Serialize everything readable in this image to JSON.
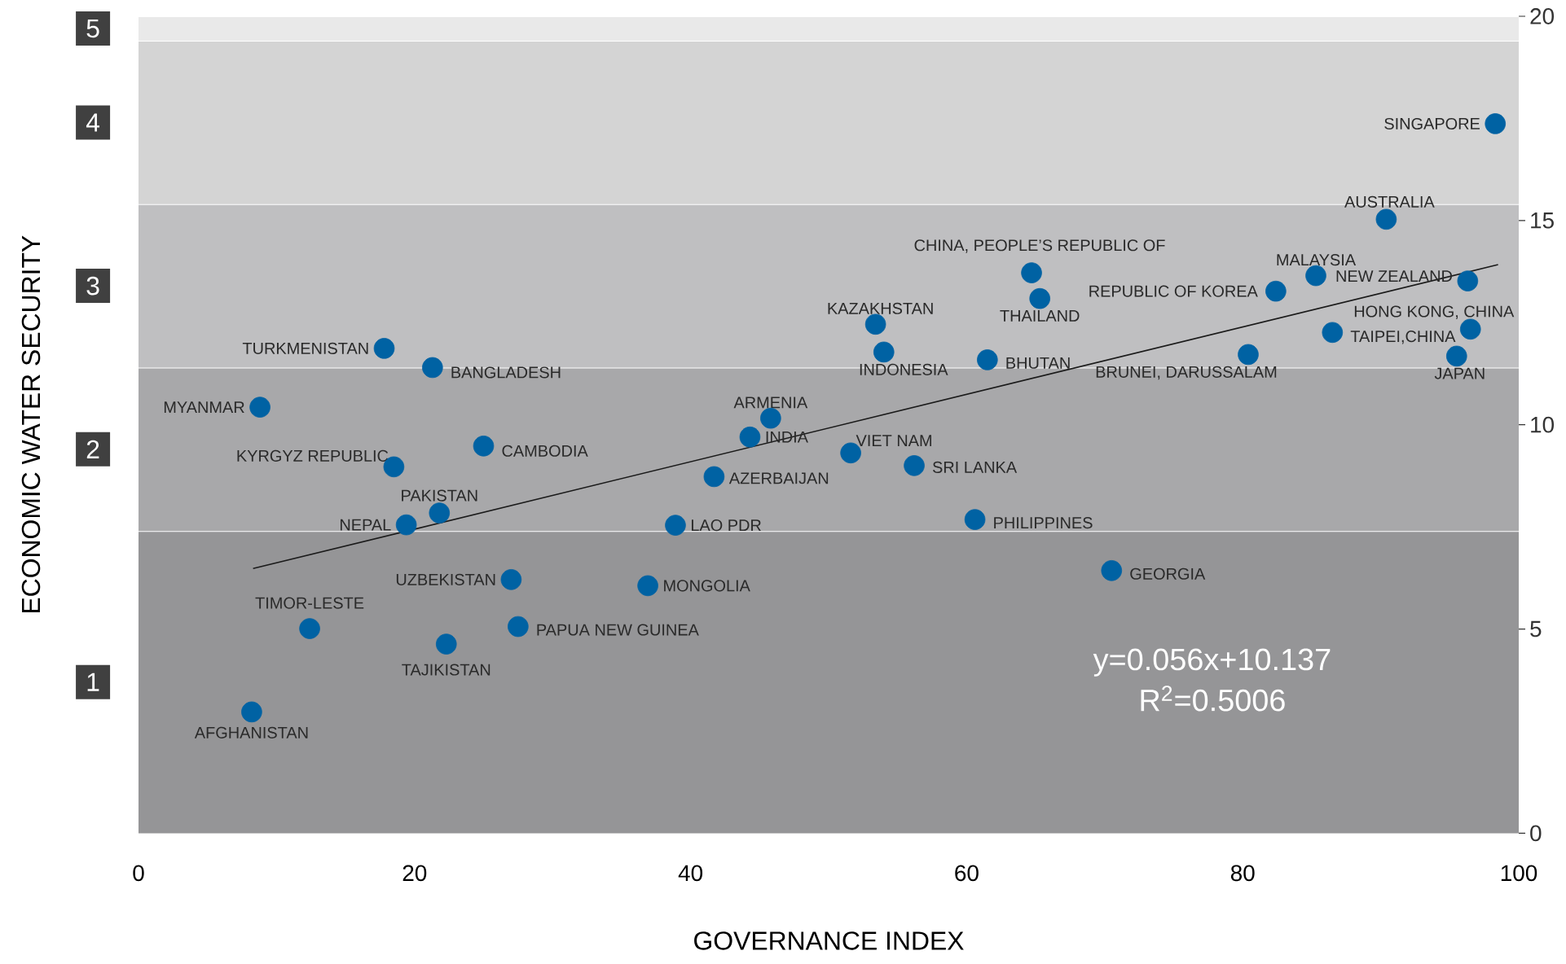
{
  "chart_data": {
    "type": "scatter",
    "xlabel": "GOVERNANCE INDEX",
    "ylabel": "ECONOMIC WATER SECURITY",
    "xlim": [
      0,
      100
    ],
    "ylim": [
      0,
      20
    ],
    "xticks": [
      0,
      20,
      40,
      60,
      80,
      100
    ],
    "yticks": [
      0,
      5,
      10,
      15,
      20
    ],
    "bands": [
      {
        "axis": "y",
        "from": 0,
        "to": 7.4,
        "label": "1",
        "color": "#959597"
      },
      {
        "axis": "y",
        "from": 7.4,
        "to": 11.4,
        "label": "2",
        "color": "#a8a8aa"
      },
      {
        "axis": "y",
        "from": 11.4,
        "to": 15.4,
        "label": "3",
        "color": "#bfbfc1"
      },
      {
        "axis": "y",
        "from": 15.4,
        "to": 19.4,
        "label": "4",
        "color": "#d4d4d4"
      },
      {
        "axis": "y",
        "from": 19.4,
        "to": 20,
        "label": "5",
        "color": "#e9e9e9"
      }
    ],
    "series": [
      {
        "type": "line",
        "color": "#1a1a1a",
        "x": [
          8.3,
          98.5
        ],
        "values": [
          6.48,
          13.92
        ]
      },
      {
        "color": "#0062a3",
        "marker": "circle",
        "x": [
          17.8,
          21.3,
          8.8,
          25.0,
          18.5,
          21.8,
          19.4,
          45.8,
          44.3,
          41.7,
          38.9,
          27.0,
          36.9,
          12.4,
          27.5,
          22.3,
          8.2,
          51.6,
          56.2,
          60.6,
          70.5,
          53.4,
          54.0,
          61.5,
          64.7,
          65.3,
          80.4,
          82.4,
          85.3,
          96.3,
          96.5,
          86.5,
          95.5,
          90.4,
          98.3
        ],
        "values": [
          11.87,
          11.4,
          10.43,
          9.48,
          8.97,
          7.84,
          7.55,
          10.16,
          9.7,
          8.73,
          7.54,
          6.21,
          6.06,
          5.01,
          5.06,
          4.63,
          2.97,
          9.31,
          9.0,
          7.68,
          6.43,
          12.46,
          11.78,
          11.59,
          13.72,
          13.09,
          11.72,
          13.27,
          13.65,
          13.52,
          12.34,
          12.26,
          11.68,
          15.03,
          17.37
        ]
      }
    ],
    "annotations": [
      {
        "text": "TURKMENISTAN",
        "x": 17.8,
        "y": 11.87
      },
      {
        "text": "BANGLADESH",
        "x": 21.3,
        "y": 11.4
      },
      {
        "text": "MYANMAR",
        "x": 8.8,
        "y": 10.43
      },
      {
        "text": "CAMBODIA",
        "x": 25.0,
        "y": 9.48
      },
      {
        "text": "KYRGYZ REPUBLIC",
        "x": 18.5,
        "y": 8.97
      },
      {
        "text": "PAKISTAN",
        "x": 21.8,
        "y": 7.84
      },
      {
        "text": "NEPAL",
        "x": 19.4,
        "y": 7.55
      },
      {
        "text": "ARMENIA",
        "x": 45.8,
        "y": 10.16
      },
      {
        "text": "INDIA",
        "x": 44.3,
        "y": 9.7
      },
      {
        "text": "AZERBAIJAN",
        "x": 41.7,
        "y": 8.73
      },
      {
        "text": "LAO PDR",
        "x": 38.9,
        "y": 7.54
      },
      {
        "text": "UZBEKISTAN",
        "x": 27.0,
        "y": 6.21
      },
      {
        "text": "MONGOLIA",
        "x": 36.9,
        "y": 6.06
      },
      {
        "text": "TIMOR-LESTE",
        "x": 12.4,
        "y": 5.01
      },
      {
        "text": "PAPUA NEW GUINEA",
        "x": 27.5,
        "y": 5.06
      },
      {
        "text": "TAJIKISTAN",
        "x": 22.3,
        "y": 4.63
      },
      {
        "text": "AFGHANISTAN",
        "x": 8.2,
        "y": 2.97
      },
      {
        "text": "VIET NAM",
        "x": 51.6,
        "y": 9.31
      },
      {
        "text": "SRI LANKA",
        "x": 56.2,
        "y": 9.0
      },
      {
        "text": "PHILIPPINES",
        "x": 60.6,
        "y": 7.68
      },
      {
        "text": "GEORGIA",
        "x": 70.5,
        "y": 6.43
      },
      {
        "text": "KAZAKHSTAN",
        "x": 53.4,
        "y": 12.46
      },
      {
        "text": "INDONESIA",
        "x": 54.0,
        "y": 11.78
      },
      {
        "text": "BHUTAN",
        "x": 61.5,
        "y": 11.59
      },
      {
        "text": "CHINA, PEOPLE’S REPUBLIC OF",
        "x": 64.7,
        "y": 13.72
      },
      {
        "text": "THAILAND",
        "x": 65.3,
        "y": 13.09
      },
      {
        "text": "BRUNEI, DARUSSALAM",
        "x": 80.4,
        "y": 11.72
      },
      {
        "text": "REPUBLIC OF KOREA",
        "x": 82.4,
        "y": 13.27
      },
      {
        "text": "MALAYSIA",
        "x": 85.3,
        "y": 13.65
      },
      {
        "text": "NEW ZEALAND",
        "x": 96.3,
        "y": 13.52
      },
      {
        "text": "HONG KONG, CHINA",
        "x": 96.5,
        "y": 12.34
      },
      {
        "text": "TAIPEI,CHINA",
        "x": 86.5,
        "y": 12.26
      },
      {
        "text": "JAPAN",
        "x": 95.5,
        "y": 11.68
      },
      {
        "text": "AUSTRALIA",
        "x": 90.4,
        "y": 15.03
      },
      {
        "text": "SINGAPORE",
        "x": 98.3,
        "y": 17.37
      },
      "y=0.056x+10.137",
      "R$^{2}$=0.5006"
    ]
  }
}
